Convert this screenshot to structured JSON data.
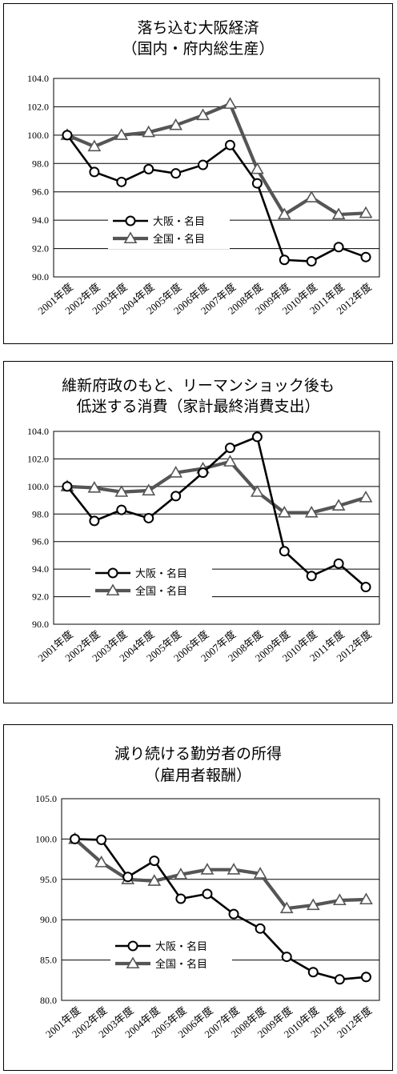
{
  "charts": [
    {
      "title_line1": "落ち込む大阪経済",
      "title_line2": "（国内・府内総生産）",
      "chart_data": {
        "type": "line",
        "categories": [
          "2001年度",
          "2002年度",
          "2003年度",
          "2004年度",
          "2005年度",
          "2006年度",
          "2007年度",
          "2008年度",
          "2009年度",
          "2010年度",
          "2011年度",
          "2012年度"
        ],
        "ylim": [
          90,
          104
        ],
        "yticks": [
          "90.0",
          "92.0",
          "94.0",
          "96.0",
          "98.0",
          "100.0",
          "102.0",
          "104.0"
        ],
        "grid": true,
        "legend_position": "lower-left",
        "series": [
          {
            "name": "大阪・名目",
            "marker": "circle",
            "color": "#000000",
            "values": [
              100.0,
              97.4,
              96.7,
              97.6,
              97.3,
              97.9,
              99.3,
              96.6,
              91.2,
              91.1,
              92.1,
              91.4
            ]
          },
          {
            "name": "全国・名目",
            "marker": "triangle",
            "color": "#555555",
            "values": [
              100.0,
              99.2,
              100.0,
              100.2,
              100.7,
              101.4,
              102.2,
              97.6,
              94.4,
              95.6,
              94.4,
              94.5
            ]
          }
        ]
      }
    },
    {
      "title_line1": "維新府政のもと、リーマンショック後も",
      "title_line2": "低迷する消費（家計最終消費支出）",
      "chart_data": {
        "type": "line",
        "categories": [
          "2001年度",
          "2002年度",
          "2003年度",
          "2004年度",
          "2005年度",
          "2006年度",
          "2007年度",
          "2008年度",
          "2009年度",
          "2010年度",
          "2011年度",
          "2012年度"
        ],
        "ylim": [
          90,
          104
        ],
        "yticks": [
          "90.0",
          "92.0",
          "94.0",
          "96.0",
          "98.0",
          "100.0",
          "102.0",
          "104.0"
        ],
        "grid": true,
        "legend_position": "lower-left",
        "series": [
          {
            "name": "大阪・名目",
            "marker": "circle",
            "color": "#000000",
            "values": [
              100.0,
              97.5,
              98.3,
              97.7,
              99.3,
              101.0,
              102.8,
              103.6,
              95.3,
              93.5,
              94.4,
              92.7
            ]
          },
          {
            "name": "全国・名目",
            "marker": "triangle",
            "color": "#555555",
            "values": [
              100.0,
              99.9,
              99.6,
              99.7,
              101.0,
              101.3,
              101.8,
              99.6,
              98.1,
              98.1,
              98.6,
              99.2
            ]
          }
        ]
      }
    },
    {
      "title_line1": "減り続ける勤労者の所得",
      "title_line2": "（雇用者報酬）",
      "chart_data": {
        "type": "line",
        "categories": [
          "2001年度",
          "2002年度",
          "2003年度",
          "2004年度",
          "2005年度",
          "2006年度",
          "2007年度",
          "2008年度",
          "2009年度",
          "2010年度",
          "2011年度",
          "2012年度"
        ],
        "ylim": [
          80,
          105
        ],
        "yticks": [
          "80.0",
          "85.0",
          "90.0",
          "95.0",
          "100.0",
          "105.0"
        ],
        "grid": true,
        "legend_position": "lower-left",
        "series": [
          {
            "name": "大阪・名目",
            "marker": "circle",
            "color": "#000000",
            "values": [
              100.0,
              99.9,
              95.3,
              97.3,
              92.6,
              93.2,
              90.7,
              88.9,
              85.4,
              83.5,
              82.6,
              82.9
            ]
          },
          {
            "name": "全国・名目",
            "marker": "triangle",
            "color": "#555555",
            "values": [
              100.0,
              97.1,
              95.0,
              94.8,
              95.6,
              96.2,
              96.2,
              95.7,
              91.4,
              91.8,
              92.4,
              92.5
            ]
          }
        ]
      }
    }
  ]
}
